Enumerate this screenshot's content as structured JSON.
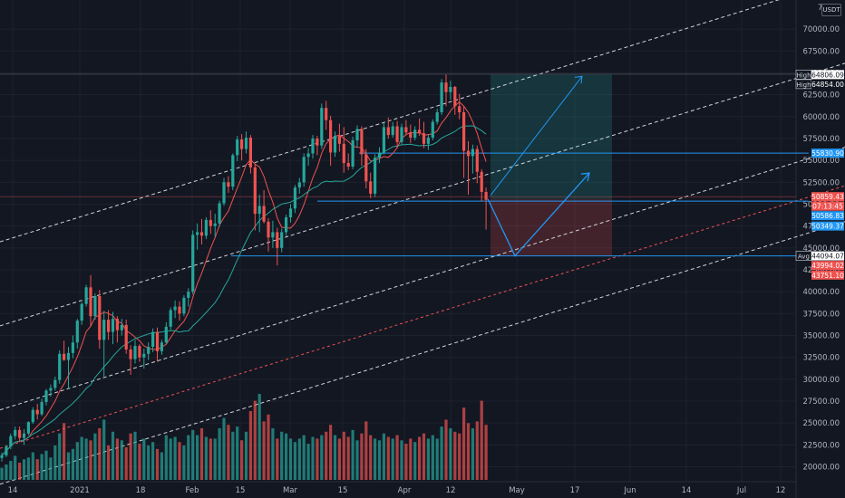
{
  "unit": "USDT",
  "chart_data": {
    "type": "candlestick",
    "x_tick_labels": [
      "14",
      "2021",
      "18",
      "Feb",
      "15",
      "Mar",
      "15",
      "Apr",
      "12",
      "May",
      "17",
      "Jun",
      "14",
      "Jul",
      "12"
    ],
    "y_ticks": [
      20000,
      22500,
      25000,
      27500,
      30000,
      32500,
      35000,
      37500,
      40000,
      42500,
      45000,
      47500,
      50000,
      52500,
      55000,
      57500,
      60000,
      62500,
      65000,
      67500,
      70000
    ],
    "y_top_partial_label": "7",
    "ylim": [
      18500,
      72500
    ],
    "price_labels": [
      {
        "tag": "High",
        "value": "64806.09",
        "price": 64806.09,
        "color": "#ffffff",
        "text": "#131722"
      },
      {
        "tag": "High",
        "value": "64854.00",
        "price": 64854.0,
        "color": "#131722",
        "text": "#ffffff"
      },
      {
        "tag": "",
        "value": "55830.90",
        "price": 55830.9,
        "color": "#2196f3",
        "text": "#ffffff"
      },
      {
        "tag": "",
        "value": "50859.43",
        "price": 50859.43,
        "color": "#ef5350",
        "text": "#ffffff"
      },
      {
        "tag": "",
        "value": "07:13:45",
        "price": 49950.0,
        "color": "#ef5350",
        "text": "#ffffff"
      },
      {
        "tag": "",
        "value": "50586.83",
        "price": 48900.0,
        "color": "#2196f3",
        "text": "#ffffff"
      },
      {
        "tag": "",
        "value": "50349.37",
        "price": 47500.0,
        "color": "#2196f3",
        "text": "#ffffff"
      },
      {
        "tag": "Avg",
        "value": "44094.07",
        "price": 44094.07,
        "color": "#ffffff",
        "text": "#131722"
      },
      {
        "tag": "",
        "value": "43994.02",
        "price": 43000.0,
        "color": "#ef5350",
        "text": "#ffffff"
      },
      {
        "tag": "",
        "value": "43751.10",
        "price": 41900.0,
        "color": "#ef5350",
        "text": "#ffffff"
      }
    ],
    "candles": [
      [
        21000,
        21600,
        20600,
        21300
      ],
      [
        21300,
        22500,
        21100,
        22300
      ],
      [
        22300,
        23800,
        22000,
        23500
      ],
      [
        23500,
        24600,
        23100,
        24200
      ],
      [
        24200,
        24600,
        22800,
        23300
      ],
      [
        23300,
        24300,
        22500,
        23800
      ],
      [
        23800,
        25200,
        23600,
        25100
      ],
      [
        25100,
        26800,
        24900,
        26500
      ],
      [
        26500,
        27200,
        25400,
        26000
      ],
      [
        26000,
        27800,
        25800,
        27400
      ],
      [
        27400,
        28900,
        27000,
        28700
      ],
      [
        28700,
        29400,
        28000,
        29000
      ],
      [
        29000,
        30300,
        28700,
        29900
      ],
      [
        29900,
        33300,
        29500,
        32900
      ],
      [
        32900,
        34400,
        32100,
        32200
      ],
      [
        32200,
        33700,
        28900,
        33000
      ],
      [
        33000,
        35000,
        32400,
        34200
      ],
      [
        34200,
        36900,
        33500,
        36700
      ],
      [
        36700,
        38800,
        36200,
        38600
      ],
      [
        38600,
        40800,
        38300,
        40500
      ],
      [
        40500,
        41900,
        36000,
        37200
      ],
      [
        37200,
        39800,
        36800,
        39500
      ],
      [
        39500,
        40200,
        33500,
        34500
      ],
      [
        34500,
        37800,
        30300,
        36800
      ],
      [
        36800,
        37900,
        34500,
        35400
      ],
      [
        35400,
        37700,
        34000,
        36900
      ],
      [
        36900,
        37200,
        34200,
        35600
      ],
      [
        35600,
        36900,
        35000,
        36200
      ],
      [
        36200,
        36800,
        32900,
        33400
      ],
      [
        33400,
        33900,
        30500,
        32300
      ],
      [
        32300,
        34500,
        31800,
        33800
      ],
      [
        33800,
        34000,
        32000,
        32500
      ],
      [
        32500,
        33500,
        31200,
        32900
      ],
      [
        32900,
        34200,
        32200,
        33700
      ],
      [
        33700,
        35800,
        33100,
        35400
      ],
      [
        35400,
        35900,
        32000,
        33200
      ],
      [
        33200,
        34500,
        32800,
        34200
      ],
      [
        34200,
        36500,
        34000,
        36000
      ],
      [
        36000,
        38200,
        35600,
        37900
      ],
      [
        37900,
        39000,
        37000,
        38300
      ],
      [
        38300,
        38900,
        36700,
        37500
      ],
      [
        37500,
        39600,
        37200,
        39300
      ],
      [
        39300,
        40400,
        38300,
        40000
      ],
      [
        40000,
        47000,
        39700,
        46500
      ],
      [
        46500,
        47800,
        44800,
        46800
      ],
      [
        46800,
        48300,
        45400,
        46400
      ],
      [
        46400,
        48500,
        46000,
        48200
      ],
      [
        48200,
        49300,
        46600,
        47500
      ],
      [
        47500,
        48900,
        46300,
        47800
      ],
      [
        47800,
        50400,
        47400,
        50100
      ],
      [
        50100,
        53000,
        49800,
        52500
      ],
      [
        52500,
        53200,
        51300,
        52000
      ],
      [
        52000,
        55800,
        51600,
        55600
      ],
      [
        55600,
        57800,
        54900,
        57400
      ],
      [
        57400,
        58000,
        55000,
        56300
      ],
      [
        56300,
        58300,
        55800,
        57600
      ],
      [
        57600,
        57900,
        53500,
        54200
      ],
      [
        54200,
        54600,
        47000,
        48900
      ],
      [
        48900,
        51100,
        46800,
        49800
      ],
      [
        49800,
        51600,
        47800,
        48000
      ],
      [
        48000,
        48400,
        44600,
        46200
      ],
      [
        46200,
        48100,
        45000,
        46800
      ],
      [
        46800,
        47300,
        43000,
        45000
      ],
      [
        45000,
        47200,
        44500,
        46800
      ],
      [
        46800,
        48800,
        46400,
        48500
      ],
      [
        48500,
        50000,
        47900,
        49500
      ],
      [
        49500,
        52200,
        49000,
        51900
      ],
      [
        51900,
        53000,
        51200,
        52500
      ],
      [
        52500,
        55800,
        52000,
        55400
      ],
      [
        55400,
        56400,
        54400,
        55800
      ],
      [
        55800,
        57900,
        55200,
        57500
      ],
      [
        57500,
        57800,
        55600,
        56700
      ],
      [
        56700,
        61500,
        56300,
        61000
      ],
      [
        61000,
        61800,
        58500,
        59600
      ],
      [
        59600,
        60100,
        54400,
        55900
      ],
      [
        55900,
        58300,
        55400,
        57800
      ],
      [
        57800,
        59200,
        56000,
        56900
      ],
      [
        56900,
        58800,
        53600,
        54700
      ],
      [
        54700,
        55800,
        53900,
        54300
      ],
      [
        54300,
        57700,
        54000,
        57300
      ],
      [
        57300,
        59000,
        56500,
        58600
      ],
      [
        58600,
        58900,
        54400,
        55700
      ],
      [
        55700,
        56300,
        51800,
        52600
      ],
      [
        52600,
        53600,
        50700,
        51200
      ],
      [
        51200,
        55700,
        50800,
        55300
      ],
      [
        55300,
        56500,
        54700,
        55900
      ],
      [
        55900,
        59300,
        55700,
        58800
      ],
      [
        58800,
        59900,
        57500,
        57900
      ],
      [
        57900,
        59400,
        57600,
        58900
      ],
      [
        58900,
        59500,
        56400,
        57100
      ],
      [
        57100,
        59200,
        56800,
        58800
      ],
      [
        58800,
        59600,
        57900,
        58200
      ],
      [
        58200,
        59100,
        57000,
        57600
      ],
      [
        57600,
        58900,
        57300,
        58500
      ],
      [
        58500,
        59800,
        57800,
        58100
      ],
      [
        58100,
        59400,
        56400,
        56900
      ],
      [
        56900,
        58000,
        56200,
        57600
      ],
      [
        57600,
        59700,
        57300,
        59400
      ],
      [
        59400,
        60900,
        59100,
        60500
      ],
      [
        60500,
        64300,
        60200,
        63900
      ],
      [
        63900,
        64800,
        61200,
        62800
      ],
      [
        62800,
        64100,
        61900,
        63400
      ],
      [
        63400,
        63500,
        60200,
        61200
      ],
      [
        61200,
        62600,
        59700,
        60500
      ],
      [
        60500,
        61200,
        53000,
        56100
      ],
      [
        56100,
        57200,
        51100,
        55500
      ],
      [
        55500,
        56800,
        53500,
        56300
      ],
      [
        56300,
        56700,
        52400,
        53700
      ],
      [
        53700,
        54000,
        50300,
        51400
      ],
      [
        51400,
        51900,
        47100,
        50500
      ]
    ],
    "volumes": [
      7,
      9,
      11,
      14,
      10,
      12,
      13,
      16,
      12,
      15,
      17,
      13,
      20,
      27,
      33,
      16,
      18,
      22,
      25,
      24,
      23,
      27,
      30,
      35,
      20,
      28,
      24,
      23,
      19,
      27,
      28,
      21,
      24,
      20,
      22,
      18,
      16,
      26,
      24,
      25,
      22,
      20,
      26,
      29,
      26,
      30,
      25,
      24,
      24,
      30,
      36,
      32,
      28,
      31,
      23,
      28,
      40,
      46,
      50,
      34,
      38,
      30,
      24,
      28,
      27,
      24,
      22,
      24,
      26,
      21,
      25,
      24,
      26,
      28,
      32,
      26,
      24,
      28,
      25,
      29,
      23,
      27,
      34,
      26,
      24,
      23,
      27,
      25,
      24,
      26,
      23,
      21,
      24,
      22,
      25,
      27,
      24,
      26,
      24,
      31,
      35,
      30,
      28,
      27,
      42,
      33,
      30,
      34,
      46,
      32
    ],
    "volume_colors_up": "#26a69a",
    "volume_colors_down": "#ef5350",
    "moving_averages": [
      {
        "period": 7,
        "color": "#ef5350"
      },
      {
        "period": 21,
        "color": "#26a69a"
      }
    ],
    "long_position": {
      "entry": 50586.83,
      "target": 64806.09,
      "stop": 44094.07
    },
    "horizontal_levels": [
      55830.9,
      50349.37,
      44094.07
    ],
    "last_price": 50859.43,
    "projection_path_prices": [
      50586.83,
      44094.07,
      55000
    ],
    "channel_arrow_target": 64806.09
  }
}
